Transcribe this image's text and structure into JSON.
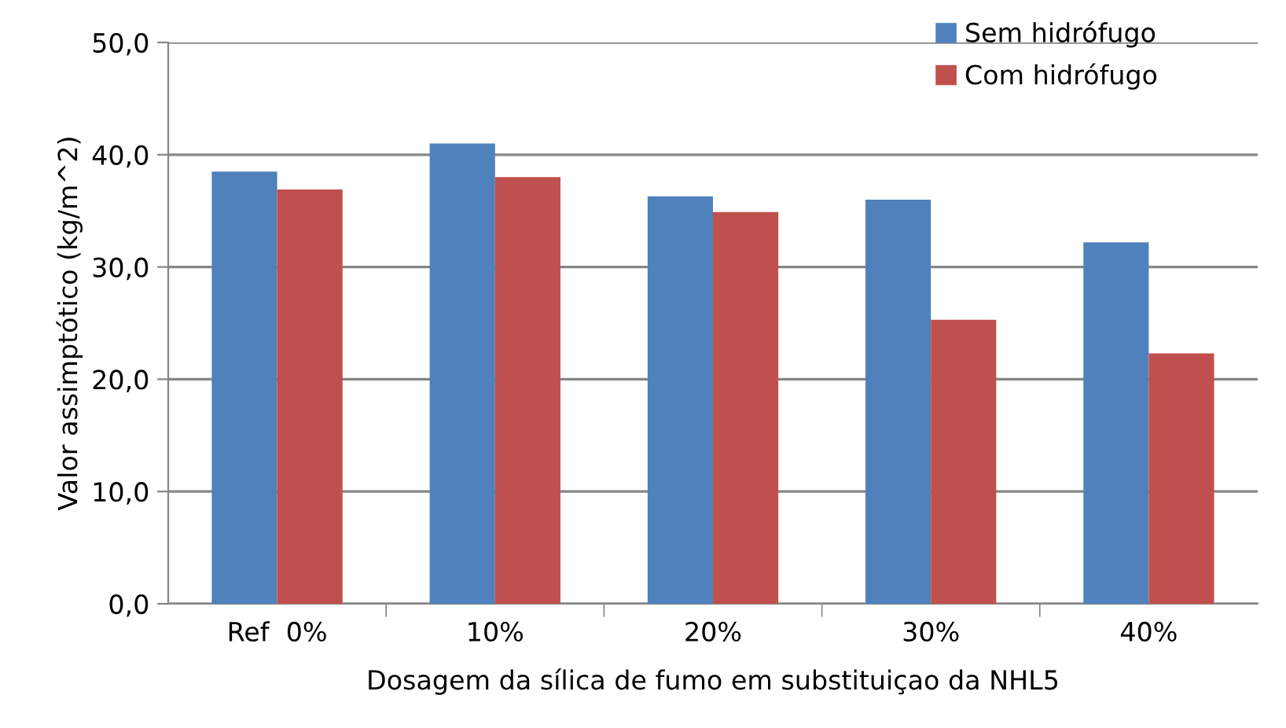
{
  "chart_data": {
    "type": "bar",
    "xlabel": "Dosagem da sílica de fumo em substituiçao da NHL5",
    "ylabel": "Valor assimptótico (kg/m^2)",
    "categories": [
      "Ref  0%",
      "10%",
      "20%",
      "30%",
      "40%"
    ],
    "series": [
      {
        "name": "Sem hidrófugo",
        "color": "#4f81bd",
        "values": [
          38.5,
          41.0,
          36.3,
          36.0,
          32.2
        ]
      },
      {
        "name": "Com hidrófugo",
        "color": "#c0504d",
        "values": [
          36.9,
          38.0,
          34.9,
          25.3,
          22.3
        ]
      }
    ],
    "ylim": [
      0,
      50
    ],
    "yticks": [
      {
        "value": 0,
        "label": "0,0"
      },
      {
        "value": 10,
        "label": "10,0"
      },
      {
        "value": 20,
        "label": "20,0"
      },
      {
        "value": 30,
        "label": "30,0"
      },
      {
        "value": 40,
        "label": "40,0"
      },
      {
        "value": 50,
        "label": "50,0"
      }
    ],
    "grid": "y",
    "legend": "top right"
  }
}
